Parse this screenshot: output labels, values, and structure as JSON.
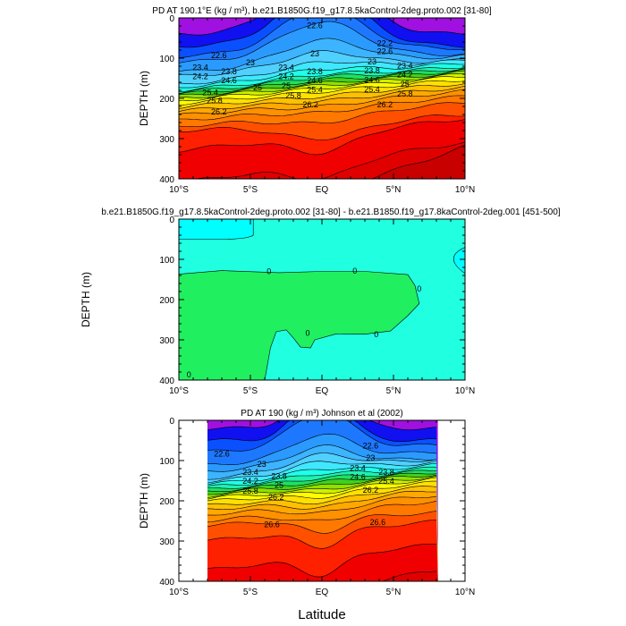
{
  "chart_data": [
    {
      "type": "contour",
      "title": "PD AT 190.1°E (kg / m³), b.e21.B1850G.f19_g17.8.5kaControl-2deg.proto.002 [31-80]",
      "ylabel": "DEPTH (m)",
      "xlabel": "",
      "xlim": [
        -10,
        10
      ],
      "ylim": [
        400,
        0
      ],
      "x_ticks": [
        "10°S",
        "5°S",
        "EQ",
        "5°N",
        "10°N"
      ],
      "y_ticks": [
        "0",
        "100",
        "200",
        "300",
        "400"
      ],
      "contour_labels": [
        "22.6",
        "22.2",
        "22.6",
        "23",
        "22.6",
        "23",
        "23.4",
        "23.8",
        "24.2",
        "24.6",
        "25",
        "25.4",
        "25.8",
        "26.2",
        "23.4",
        "23.8",
        "24.2",
        "24.6",
        "25",
        "25.4",
        "25.8",
        "26.2",
        "23",
        "23.4",
        "23.8",
        "24.2",
        "24.6",
        "25",
        "25.4",
        "25.8",
        "26.2"
      ]
    },
    {
      "type": "contour",
      "title": "b.e21.B1850G.f19_g17.8.5kaControl-2deg.proto.002 [31-80] - b.e21.B1850.f19_g17.8kaControl-2deg.001 [451-500]",
      "ylabel": "DEPTH (m)",
      "xlabel": "",
      "xlim": [
        -10,
        10
      ],
      "ylim": [
        400,
        0
      ],
      "x_ticks": [
        "10°S",
        "5°S",
        "EQ",
        "5°N",
        "10°N"
      ],
      "y_ticks": [
        "0",
        "100",
        "200",
        "300",
        "400"
      ],
      "contour_labels": [
        "0",
        "0",
        "0",
        "0",
        "0",
        "0"
      ]
    },
    {
      "type": "contour",
      "title": "PD AT 190 (kg / m³) Johnson et al (2002)",
      "ylabel": "DEPTH (m)",
      "xlabel": "Latitude",
      "xlim": [
        -10,
        10
      ],
      "ylim": [
        400,
        0
      ],
      "x_ticks": [
        "10°S",
        "5°S",
        "EQ",
        "5°N",
        "10°N"
      ],
      "y_ticks": [
        "0",
        "100",
        "200",
        "300",
        "400"
      ],
      "contour_labels": [
        "22.6",
        "23",
        "23.4",
        "23.8",
        "24.2",
        "25",
        "25.8",
        "26.2",
        "22.6",
        "23",
        "23.4",
        "23.8",
        "24.6",
        "25.4",
        "26.2",
        "26.6",
        "26.6"
      ]
    }
  ],
  "colors": {
    "levels": [
      "#a010e0",
      "#1010f0",
      "#0a50ff",
      "#1e78ff",
      "#2a9aff",
      "#3cb4ff",
      "#50d0ff",
      "#40e8ff",
      "#20ffe8",
      "#20f0b0",
      "#20e060",
      "#40d020",
      "#90e000",
      "#d0f000",
      "#ffff00",
      "#ffe000",
      "#ffc000",
      "#ffa800",
      "#ff9000",
      "#ff7800",
      "#ff5000",
      "#ff2000",
      "#f00000",
      "#e00000",
      "#c80000"
    ],
    "diff_positive": "#20ffe0",
    "diff_top": "#00ffff",
    "diff_negative": "#20f060"
  }
}
